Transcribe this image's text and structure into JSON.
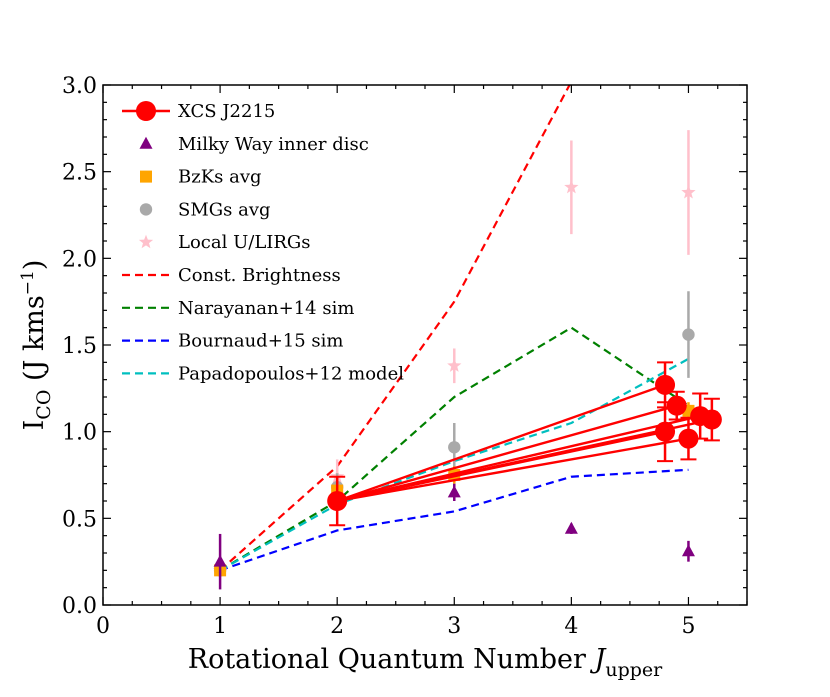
{
  "chart_data": {
    "type": "line",
    "title": "",
    "xlabel": "Rotational Quantum Number ",
    "xlabel_sym": "J",
    "xlabel_sub": "upper",
    "ylabel_main": "I",
    "ylabel_sub": "CO",
    "ylabel_unit": " (J kms",
    "ylabel_exp": "−1",
    "ylabel_close": ")",
    "xlim": [
      0,
      5.5
    ],
    "ylim": [
      0,
      3.0
    ],
    "x_ticks": [
      0,
      1,
      2,
      3,
      4,
      5
    ],
    "x_tick_labels": [
      "0",
      "1",
      "2",
      "3",
      "4",
      "5"
    ],
    "y_ticks": [
      0,
      0.5,
      1.0,
      1.5,
      2.0,
      2.5,
      3.0
    ],
    "y_tick_labels": [
      "0.0",
      "0.5",
      "1.0",
      "1.5",
      "2.0",
      "2.5",
      "3.0"
    ],
    "legend_position": "top-left",
    "legend": [
      {
        "label": "XCS J2215",
        "marker": "circle",
        "color": "#ff0000",
        "line": true
      },
      {
        "label": "Milky Way inner disc",
        "marker": "triangle",
        "color": "#800080"
      },
      {
        "label": "BzKs avg",
        "marker": "square",
        "color": "#ffa500"
      },
      {
        "label": "SMGs avg",
        "marker": "circle-small",
        "color": "#a9a9a9"
      },
      {
        "label": "Local U/LIRGs",
        "marker": "star",
        "color": "#ffc0cb"
      },
      {
        "label": "Const. Brightness",
        "marker": "dashed",
        "color": "#ff0000"
      },
      {
        "label": "Narayanan+14 sim",
        "marker": "dashed",
        "color": "#008000"
      },
      {
        "label": "Bournaud+15 sim",
        "marker": "dashed",
        "color": "#0000ff"
      },
      {
        "label": "Papadopoulos+12 model",
        "marker": "dashed",
        "color": "#00bfbf"
      }
    ],
    "model_lines": [
      {
        "name": "Const. Brightness",
        "color": "#ff0000",
        "x": [
          1,
          2,
          3,
          4
        ],
        "y": [
          0.2,
          0.8,
          1.75,
          3.02
        ]
      },
      {
        "name": "Narayanan+14 sim",
        "color": "#008000",
        "x": [
          1,
          2,
          3,
          4,
          5
        ],
        "y": [
          0.2,
          0.6,
          1.2,
          1.6,
          1.15
        ]
      },
      {
        "name": "Bournaud+15 sim",
        "color": "#0000ff",
        "x": [
          1,
          2,
          3,
          4,
          5
        ],
        "y": [
          0.2,
          0.43,
          0.54,
          0.74,
          0.78
        ]
      },
      {
        "name": "Papadopoulos+12 model",
        "color": "#00bfbf",
        "x": [
          1,
          2,
          3,
          4,
          5
        ],
        "y": [
          0.2,
          0.58,
          0.83,
          1.05,
          1.42
        ]
      }
    ],
    "milky_way": {
      "color": "#800080",
      "x": [
        1,
        3,
        4,
        5
      ],
      "y": [
        0.25,
        0.65,
        0.44,
        0.31
      ],
      "err": [
        0.16,
        0.05,
        0.03,
        0.06
      ]
    },
    "bzks": {
      "color": "#ffa500",
      "x": [
        1,
        2,
        3,
        5
      ],
      "y": [
        0.2,
        0.66,
        0.75,
        1.12
      ],
      "err": [
        0.03,
        0.05,
        0.05,
        0.05
      ]
    },
    "smgs": {
      "color": "#a9a9a9",
      "x": [
        1,
        2,
        3,
        5
      ],
      "y": [
        0.2,
        0.68,
        0.91,
        1.56
      ],
      "err": [
        0.03,
        0.08,
        0.14,
        0.25
      ]
    },
    "ulirgs": {
      "color": "#ffc0cb",
      "x": [
        1,
        2,
        3,
        4,
        5
      ],
      "y": [
        0.2,
        0.74,
        1.38,
        2.41,
        2.38
      ],
      "err": [
        0.03,
        0.1,
        0.1,
        0.27,
        0.36
      ]
    },
    "xcs_j2215": {
      "color": "#ff0000",
      "anchor": {
        "x": 2,
        "y": 0.6,
        "err": 0.14
      },
      "x": [
        4.8,
        4.8,
        4.9,
        5.0,
        5.1,
        5.2
      ],
      "y": [
        1.27,
        1.0,
        1.15,
        0.96,
        1.09,
        1.07
      ],
      "err": [
        0.13,
        0.17,
        0.08,
        0.12,
        0.13,
        0.12
      ]
    }
  }
}
